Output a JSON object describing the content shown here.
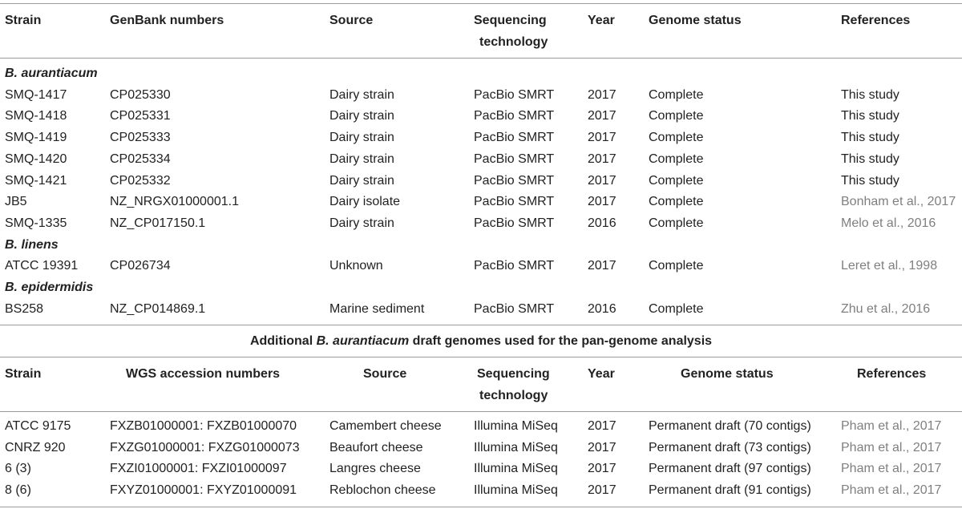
{
  "table1": {
    "headers": [
      "Strain",
      "GenBank numbers",
      "Source",
      "Sequencing technology",
      "Year",
      "Genome status",
      "References"
    ],
    "header_seq_line1": "Sequencing",
    "header_seq_line2": "technology",
    "groups": [
      {
        "name": "B. aurantiacum",
        "rows": [
          [
            "SMQ-1417",
            "CP025330",
            "Dairy strain",
            "PacBio SMRT",
            "2017",
            "Complete",
            "This study"
          ],
          [
            "SMQ-1418",
            "CP025331",
            "Dairy strain",
            "PacBio SMRT",
            "2017",
            "Complete",
            "This study"
          ],
          [
            "SMQ-1419",
            "CP025333",
            "Dairy strain",
            "PacBio SMRT",
            "2017",
            "Complete",
            "This study"
          ],
          [
            "SMQ-1420",
            "CP025334",
            "Dairy strain",
            "PacBio SMRT",
            "2017",
            "Complete",
            "This study"
          ],
          [
            "SMQ-1421",
            "CP025332",
            "Dairy strain",
            "PacBio SMRT",
            "2017",
            "Complete",
            "This study"
          ],
          [
            "JB5",
            "NZ_NRGX01000001.1",
            "Dairy isolate",
            "PacBio SMRT",
            "2017",
            "Complete",
            "Bonham et al., 2017"
          ],
          [
            "SMQ-1335",
            "NZ_CP017150.1",
            "Dairy strain",
            "PacBio SMRT",
            "2016",
            "Complete",
            "Melo et al., 2016"
          ]
        ]
      },
      {
        "name": "B. linens",
        "rows": [
          [
            "ATCC 19391",
            "CP026734",
            "Unknown",
            "PacBio SMRT",
            "2017",
            "Complete",
            "Leret et al., 1998"
          ]
        ]
      },
      {
        "name": "B. epidermidis",
        "rows": [
          [
            "BS258",
            "NZ_CP014869.1",
            "Marine sediment",
            "PacBio SMRT",
            "2016",
            "Complete",
            "Zhu et al., 2016"
          ]
        ]
      }
    ]
  },
  "caption": {
    "prefix": "Additional ",
    "italic": "B. aurantiacum",
    "suffix": " draft genomes used for the pan-genome analysis"
  },
  "table2": {
    "headers": [
      "Strain",
      "WGS accession numbers",
      "Source",
      "Sequencing technology",
      "Year",
      "Genome status",
      "References"
    ],
    "header_seq_line1": "Sequencing",
    "header_seq_line2": "technology",
    "rows": [
      [
        "ATCC 9175",
        "FXZB01000001: FXZB01000070",
        "Camembert cheese",
        "Illumina MiSeq",
        "2017",
        "Permanent draft (70 contigs)",
        "Pham et al., 2017"
      ],
      [
        "CNRZ 920",
        "FXZG01000001: FXZG01000073",
        "Beaufort cheese",
        "Illumina MiSeq",
        "2017",
        "Permanent draft (73 contigs)",
        "Pham et al., 2017"
      ],
      [
        "6 (3)",
        "FXZI01000001: FXZI01000097",
        "Langres cheese",
        "Illumina MiSeq",
        "2017",
        "Permanent draft (97 contigs)",
        "Pham et al., 2017"
      ],
      [
        "8 (6)",
        "FXYZ01000001: FXYZ01000091",
        "Reblochon cheese",
        "Illumina MiSeq",
        "2017",
        "Permanent draft (91 contigs)",
        "Pham et al., 2017"
      ]
    ]
  }
}
